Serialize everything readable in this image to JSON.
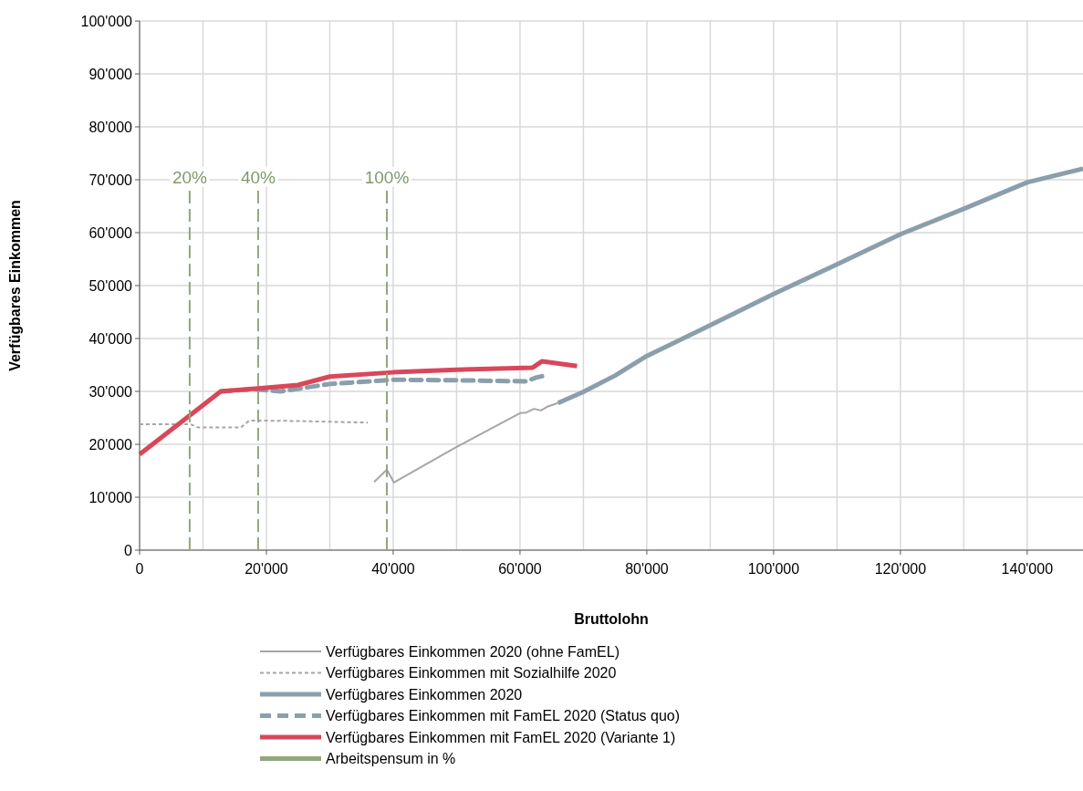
{
  "chart_data": {
    "type": "line",
    "xlabel": "Bruttolohn",
    "ylabel": "Verfügbares Einkommen",
    "xlim": [
      0,
      148800
    ],
    "ylim": [
      0,
      100000
    ],
    "xticks": [
      {
        "value": 0,
        "label": "0"
      },
      {
        "value": 10000,
        "label": null
      },
      {
        "value": 20000,
        "label": "20'000"
      },
      {
        "value": 30000,
        "label": null
      },
      {
        "value": 40000,
        "label": "40'000"
      },
      {
        "value": 50000,
        "label": null
      },
      {
        "value": 60000,
        "label": "60'000"
      },
      {
        "value": 70000,
        "label": null
      },
      {
        "value": 80000,
        "label": "80'000"
      },
      {
        "value": 90000,
        "label": null
      },
      {
        "value": 100000,
        "label": "100'000"
      },
      {
        "value": 110000,
        "label": null
      },
      {
        "value": 120000,
        "label": "120'000"
      },
      {
        "value": 130000,
        "label": null
      },
      {
        "value": 140000,
        "label": "140'000"
      }
    ],
    "yticks": [
      {
        "value": 0,
        "label": "0"
      },
      {
        "value": 10000,
        "label": "10'000"
      },
      {
        "value": 20000,
        "label": "20'000"
      },
      {
        "value": 30000,
        "label": "30'000"
      },
      {
        "value": 40000,
        "label": "40'000"
      },
      {
        "value": 50000,
        "label": "50'000"
      },
      {
        "value": 60000,
        "label": "60'000"
      },
      {
        "value": 70000,
        "label": "70'000"
      },
      {
        "value": 80000,
        "label": "80'000"
      },
      {
        "value": 90000,
        "label": "90'000"
      },
      {
        "value": 100000,
        "label": "100'000"
      }
    ],
    "grid": true,
    "legend": "bottom",
    "marker": "none",
    "series": [
      {
        "name": "Verfügbares Einkommen 2020 (ohne FamEL)",
        "color": "#a6a6a6",
        "line_style": "solid",
        "x": [
          37000,
          39000,
          40100,
          50000,
          60000,
          61000,
          62200,
          63300,
          64300,
          66000
        ],
        "values": [
          12900,
          15200,
          12800,
          19500,
          25900,
          26000,
          26700,
          26400,
          27100,
          27800
        ]
      },
      {
        "name": "Verfügbares Einkommen mit Sozialhilfe 2020",
        "color": "#a6a6a6",
        "line_style": "dashed",
        "x": [
          0,
          8000,
          9200,
          16000,
          17300,
          25000,
          36000
        ],
        "values": [
          23800,
          23800,
          23200,
          23200,
          24500,
          24400,
          24100
        ]
      },
      {
        "name": "Verfügbares Einkommen 2020",
        "color": "#8a9fab",
        "line_style": "solid",
        "x": [
          66000,
          70000,
          75000,
          80000,
          90000,
          100000,
          110000,
          120000,
          130000,
          140000,
          148800
        ],
        "values": [
          27800,
          29900,
          33000,
          36700,
          42500,
          48400,
          54000,
          59700,
          64500,
          69500,
          72100
        ]
      },
      {
        "name": "Verfügbares Einkommen mit FamEL 2020 (Status quo)",
        "color": "#8a9fab",
        "line_style": "dashed",
        "x": [
          12800,
          18000,
          22200,
          30000,
          40000,
          50000,
          61000,
          62500,
          64000
        ],
        "values": [
          30000,
          30400,
          30000,
          31400,
          32200,
          32100,
          31900,
          32600,
          33000
        ]
      },
      {
        "name": "Verfügbares Einkommen mit FamEL 2020 (Variante 1)",
        "color": "#d9475a",
        "line_style": "solid",
        "x": [
          0,
          12800,
          20000,
          25000,
          30000,
          40000,
          50000,
          62000,
          63500,
          69000
        ],
        "values": [
          18100,
          30000,
          30700,
          31200,
          32800,
          33600,
          34100,
          34500,
          35700,
          34800
        ]
      },
      {
        "name": "Arbeitspensum in %",
        "color": "#92a67f",
        "line_style": "dashed",
        "x": [
          7900,
          7900,
          null,
          18700,
          18700,
          null,
          39000,
          39000
        ],
        "values": [
          0,
          68000,
          null,
          0,
          68000,
          null,
          0,
          68000
        ]
      }
    ],
    "annotations": [
      {
        "text": "20%",
        "x": 7900,
        "y": 68000
      },
      {
        "text": "40%",
        "x": 18700,
        "y": 68000
      },
      {
        "text": "100%",
        "x": 39000,
        "y": 68000
      }
    ]
  }
}
